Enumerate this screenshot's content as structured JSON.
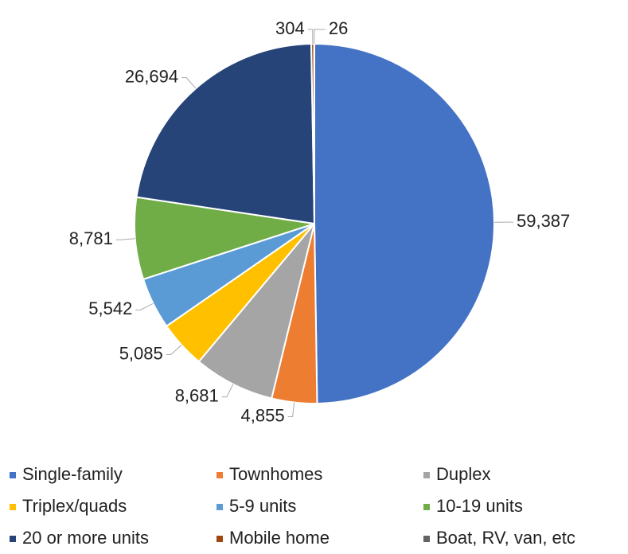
{
  "chart_data": {
    "type": "pie",
    "categories": [
      "Single-family",
      "Townhomes",
      "Duplex",
      "Triplex/quads",
      "5-9 units",
      "10-19 units",
      "20 or more units",
      "Mobile home",
      "Boat, RV, van, etc"
    ],
    "values": [
      59387,
      4855,
      8681,
      5085,
      5542,
      8781,
      26694,
      304,
      26
    ],
    "value_labels": [
      "59,387",
      "4,855",
      "8,681",
      "5,085",
      "5,542",
      "8,781",
      "26,694",
      "304",
      "26"
    ],
    "colors": [
      "#4472c4",
      "#ed7d31",
      "#a5a5a5",
      "#ffc000",
      "#5b9bd5",
      "#70ad47",
      "#264478",
      "#9e480e",
      "#636363"
    ],
    "legend": "bottom"
  }
}
